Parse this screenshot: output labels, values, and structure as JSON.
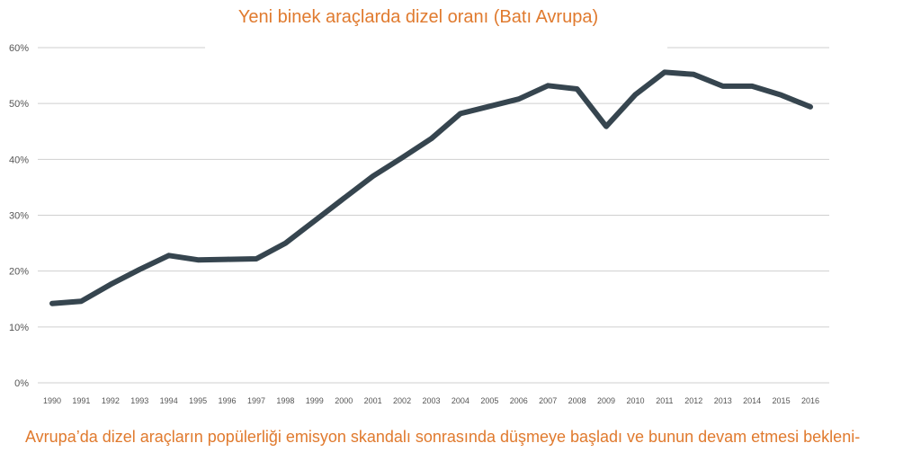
{
  "chart_data": {
    "type": "line",
    "title": "Yeni binek araçlarda dizel oranı (Batı Avrupa)",
    "xlabel": "",
    "ylabel": "",
    "ylim": [
      0,
      60
    ],
    "yticks": [
      "0%",
      "10%",
      "20%",
      "30%",
      "40%",
      "50%",
      "60%"
    ],
    "grid": true,
    "x": [
      "1990",
      "1991",
      "1992",
      "1993",
      "1994",
      "1995",
      "1996",
      "1997",
      "1998",
      "1999",
      "2000",
      "2001",
      "2002",
      "2003",
      "2004",
      "2005",
      "2006",
      "2007",
      "2008",
      "2009",
      "2010",
      "2011",
      "2012",
      "2013",
      "2014",
      "2015",
      "2016"
    ],
    "series": [
      {
        "values": [
          14.2,
          14.6,
          17.6,
          20.3,
          22.8,
          22.0,
          22.1,
          22.2,
          25.0,
          29.0,
          33.0,
          37.0,
          40.3,
          43.7,
          48.2,
          49.5,
          50.8,
          53.2,
          52.6,
          45.9,
          51.6,
          55.6,
          55.2,
          53.1,
          53.1,
          51.5,
          49.4
        ],
        "color": "#36454f"
      }
    ]
  },
  "caption": "Avrupa’da dizel araçların popülerliği  emisyon skandalı sonrasında düşmeye başladı ve bunun devam etmesi bekleni-",
  "colors": {
    "accent": "#e07a2e",
    "line": "#36454f",
    "grid": "#cfcfcf"
  }
}
